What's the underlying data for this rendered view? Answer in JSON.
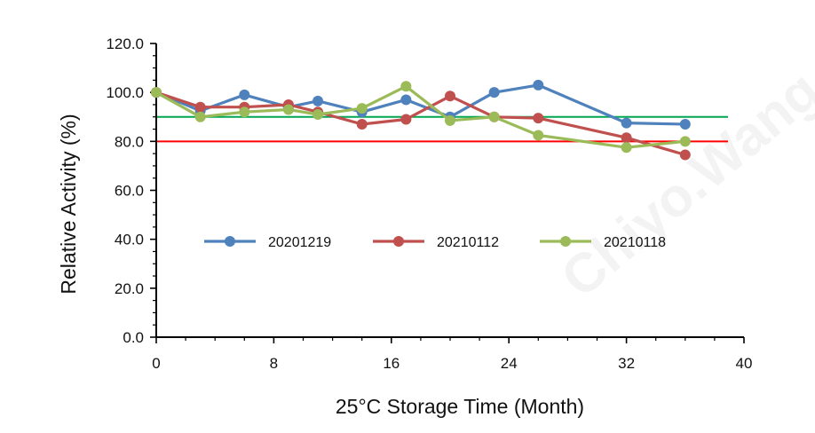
{
  "chart_data": {
    "type": "line",
    "title": "",
    "xlabel": "25°C Storage Time (Month)",
    "ylabel": "Relative Activity (%)",
    "xlim": [
      0,
      40
    ],
    "ylim": [
      0,
      120
    ],
    "xticks": [
      0,
      8,
      16,
      24,
      32,
      40
    ],
    "yticks": [
      0,
      20,
      40,
      60,
      80,
      100,
      120
    ],
    "xtick_labels": [
      "0",
      "8",
      "16",
      "24",
      "32",
      "40"
    ],
    "ytick_labels": [
      "0.0",
      "20.0",
      "40.0",
      "60.0",
      "80.0",
      "100.0",
      "120.0"
    ],
    "grid": false,
    "legend_position": "middle",
    "series": [
      {
        "name": "20201219",
        "color": "#4F81BD",
        "points": [
          [
            0,
            100
          ],
          [
            3,
            92.5
          ],
          [
            6,
            99
          ],
          [
            9,
            94
          ],
          [
            11,
            96.5
          ],
          [
            14,
            92
          ],
          [
            17,
            97
          ],
          [
            20,
            90
          ],
          [
            23,
            100
          ],
          [
            26,
            103
          ],
          [
            32,
            87.5
          ],
          [
            36,
            87
          ]
        ]
      },
      {
        "name": "20210112",
        "color": "#C0504D",
        "points": [
          [
            0,
            100
          ],
          [
            3,
            94
          ],
          [
            6,
            94
          ],
          [
            9,
            95
          ],
          [
            11,
            92
          ],
          [
            14,
            87
          ],
          [
            17,
            89
          ],
          [
            20,
            98.5
          ],
          [
            23,
            90
          ],
          [
            26,
            89.5
          ],
          [
            32,
            81.5
          ],
          [
            36,
            74.5
          ]
        ]
      },
      {
        "name": "20210118",
        "color": "#9BBB59",
        "points": [
          [
            0,
            100
          ],
          [
            3,
            90
          ],
          [
            6,
            92
          ],
          [
            9,
            93
          ],
          [
            11,
            91
          ],
          [
            14,
            93.5
          ],
          [
            17,
            102.5
          ],
          [
            20,
            88.5
          ],
          [
            23,
            90
          ],
          [
            26,
            82.5
          ],
          [
            32,
            77.5
          ],
          [
            36,
            80
          ]
        ]
      }
    ],
    "reference_lines": [
      {
        "y": 90,
        "color": "#00A651"
      },
      {
        "y": 80,
        "color": "#FF0000"
      }
    ],
    "watermark": "Chiyo.Wang"
  }
}
